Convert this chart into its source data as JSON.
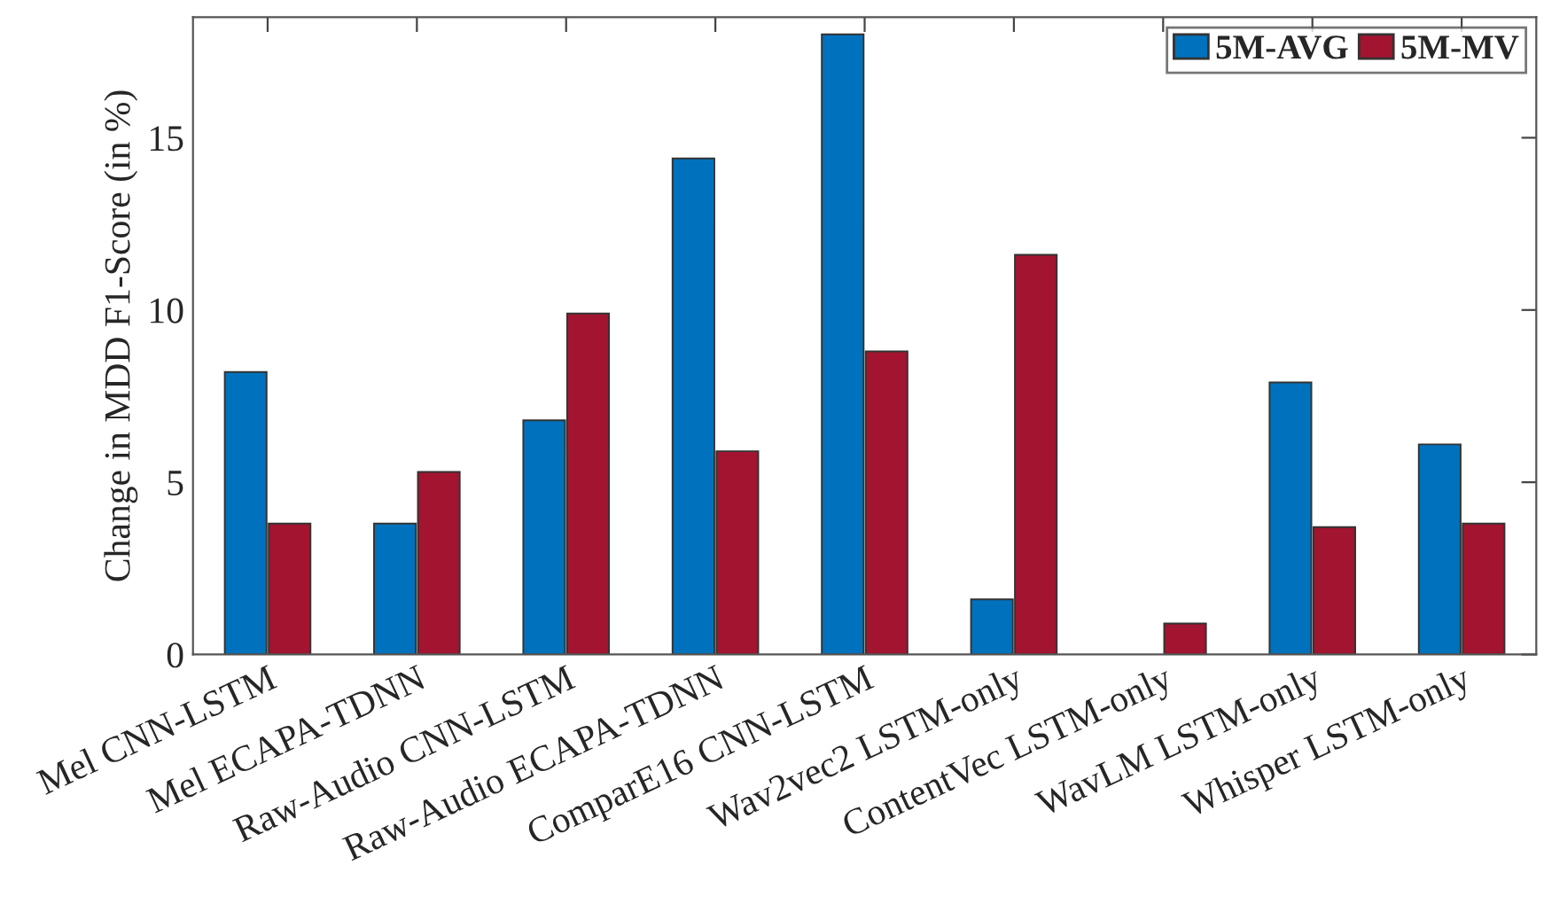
{
  "chart_data": {
    "type": "bar",
    "ylabel": "Change in MDD F1-Score (in %)",
    "categories": [
      "Mel CNN-LSTM",
      "Mel ECAPA-TDNN",
      "Raw-Audio CNN-LSTM",
      "Raw-Audio ECAPA-TDNN",
      "ComparE16 CNN-LSTM",
      "Wav2vec2 LSTM-only",
      "ContentVec LSTM-only",
      "WavLM LSTM-only",
      "Whisper LSTM-only"
    ],
    "series": [
      {
        "name": "5M-AVG",
        "color": "#0072bd",
        "values": [
          8.2,
          3.8,
          6.8,
          14.4,
          18.0,
          1.6,
          null,
          7.9,
          6.1
        ]
      },
      {
        "name": "5M-MV",
        "color": "#a2142f",
        "values": [
          3.8,
          5.3,
          9.9,
          5.9,
          8.8,
          11.6,
          0.9,
          3.7,
          3.8
        ]
      }
    ],
    "ylim": [
      0,
      18.5
    ],
    "yticks": [
      0,
      5,
      10,
      15
    ],
    "grid": false,
    "legend": "top right"
  }
}
